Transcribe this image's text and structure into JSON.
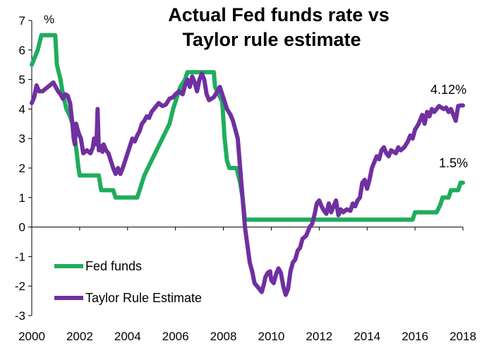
{
  "chart_data": {
    "type": "line",
    "title_lines": [
      "Actual Fed funds rate vs",
      "Taylor rule estimate"
    ],
    "ylabel": "%",
    "xlabel": "",
    "xlim": [
      2000,
      2018
    ],
    "ylim": [
      -3,
      7
    ],
    "x_ticks": [
      2000,
      2002,
      2004,
      2006,
      2008,
      2010,
      2012,
      2014,
      2016,
      2018
    ],
    "y_ticks": [
      -3,
      -2,
      -1,
      0,
      1,
      2,
      3,
      4,
      5,
      6,
      7
    ],
    "grid": false,
    "legend_position": "lower-left",
    "annotations": [
      {
        "text": "4.12%",
        "series": "Taylor Rule Estimate"
      },
      {
        "text": "1.5%",
        "series": "Fed funds"
      }
    ],
    "series": [
      {
        "name": "Fed funds",
        "color": "#1fad5c",
        "points": [
          [
            2000.0,
            5.5
          ],
          [
            2000.15,
            5.8
          ],
          [
            2000.25,
            6.0
          ],
          [
            2000.4,
            6.5
          ],
          [
            2000.6,
            6.5
          ],
          [
            2000.8,
            6.5
          ],
          [
            2000.98,
            6.5
          ],
          [
            2001.05,
            5.5
          ],
          [
            2001.2,
            5.0
          ],
          [
            2001.3,
            4.5
          ],
          [
            2001.45,
            4.0
          ],
          [
            2001.6,
            3.75
          ],
          [
            2001.7,
            3.5
          ],
          [
            2001.8,
            3.0
          ],
          [
            2001.88,
            2.5
          ],
          [
            2001.95,
            2.0
          ],
          [
            2002.0,
            1.75
          ],
          [
            2002.2,
            1.75
          ],
          [
            2002.5,
            1.75
          ],
          [
            2002.8,
            1.75
          ],
          [
            2002.9,
            1.25
          ],
          [
            2003.1,
            1.25
          ],
          [
            2003.4,
            1.25
          ],
          [
            2003.5,
            1.0
          ],
          [
            2003.8,
            1.0
          ],
          [
            2004.0,
            1.0
          ],
          [
            2004.4,
            1.0
          ],
          [
            2004.5,
            1.25
          ],
          [
            2004.6,
            1.5
          ],
          [
            2004.7,
            1.75
          ],
          [
            2004.85,
            2.0
          ],
          [
            2005.0,
            2.25
          ],
          [
            2005.15,
            2.5
          ],
          [
            2005.3,
            2.75
          ],
          [
            2005.45,
            3.0
          ],
          [
            2005.6,
            3.25
          ],
          [
            2005.75,
            3.5
          ],
          [
            2005.9,
            4.0
          ],
          [
            2006.0,
            4.25
          ],
          [
            2006.2,
            4.75
          ],
          [
            2006.4,
            5.0
          ],
          [
            2006.5,
            5.25
          ],
          [
            2006.8,
            5.25
          ],
          [
            2007.0,
            5.25
          ],
          [
            2007.3,
            5.25
          ],
          [
            2007.6,
            5.25
          ],
          [
            2007.65,
            4.75
          ],
          [
            2007.8,
            4.5
          ],
          [
            2007.95,
            4.25
          ],
          [
            2008.05,
            3.0
          ],
          [
            2008.15,
            2.25
          ],
          [
            2008.25,
            2.0
          ],
          [
            2008.55,
            2.0
          ],
          [
            2008.7,
            1.5
          ],
          [
            2008.8,
            1.0
          ],
          [
            2008.9,
            0.25
          ],
          [
            2009.5,
            0.25
          ],
          [
            2010.5,
            0.25
          ],
          [
            2011.5,
            0.25
          ],
          [
            2012.5,
            0.25
          ],
          [
            2013.5,
            0.25
          ],
          [
            2014.5,
            0.25
          ],
          [
            2015.5,
            0.25
          ],
          [
            2015.9,
            0.25
          ],
          [
            2016.0,
            0.5
          ],
          [
            2016.5,
            0.5
          ],
          [
            2016.9,
            0.5
          ],
          [
            2017.05,
            0.75
          ],
          [
            2017.15,
            1.0
          ],
          [
            2017.4,
            1.0
          ],
          [
            2017.5,
            1.25
          ],
          [
            2017.8,
            1.25
          ],
          [
            2017.9,
            1.5
          ],
          [
            2018.0,
            1.5
          ]
        ]
      },
      {
        "name": "Taylor Rule Estimate",
        "color": "#7030a0",
        "points": [
          [
            2000.0,
            4.2
          ],
          [
            2000.1,
            4.4
          ],
          [
            2000.2,
            4.8
          ],
          [
            2000.3,
            4.6
          ],
          [
            2000.45,
            4.6
          ],
          [
            2000.6,
            4.7
          ],
          [
            2000.75,
            4.8
          ],
          [
            2000.9,
            4.9
          ],
          [
            2001.0,
            4.75
          ],
          [
            2001.1,
            4.6
          ],
          [
            2001.2,
            4.5
          ],
          [
            2001.3,
            4.35
          ],
          [
            2001.4,
            4.5
          ],
          [
            2001.5,
            4.45
          ],
          [
            2001.6,
            4.2
          ],
          [
            2001.7,
            3.5
          ],
          [
            2001.75,
            3.0
          ],
          [
            2001.8,
            2.8
          ],
          [
            2001.85,
            3.5
          ],
          [
            2001.95,
            3.2
          ],
          [
            2002.05,
            3.0
          ],
          [
            2002.15,
            2.5
          ],
          [
            2002.3,
            2.6
          ],
          [
            2002.45,
            2.5
          ],
          [
            2002.55,
            2.7
          ],
          [
            2002.6,
            3.0
          ],
          [
            2002.7,
            2.8
          ],
          [
            2002.75,
            4.0
          ],
          [
            2002.8,
            2.6
          ],
          [
            2002.9,
            2.75
          ],
          [
            2002.95,
            2.55
          ],
          [
            2003.0,
            2.8
          ],
          [
            2003.1,
            2.6
          ],
          [
            2003.2,
            2.5
          ],
          [
            2003.3,
            2.25
          ],
          [
            2003.4,
            2.0
          ],
          [
            2003.5,
            1.8
          ],
          [
            2003.6,
            2.0
          ],
          [
            2003.7,
            1.8
          ],
          [
            2003.8,
            2.0
          ],
          [
            2003.9,
            2.25
          ],
          [
            2004.0,
            2.5
          ],
          [
            2004.1,
            2.75
          ],
          [
            2004.2,
            3.0
          ],
          [
            2004.3,
            2.9
          ],
          [
            2004.4,
            3.1
          ],
          [
            2004.5,
            3.25
          ],
          [
            2004.6,
            3.5
          ],
          [
            2004.7,
            3.6
          ],
          [
            2004.8,
            3.75
          ],
          [
            2004.9,
            3.7
          ],
          [
            2005.0,
            3.9
          ],
          [
            2005.1,
            4.0
          ],
          [
            2005.2,
            4.1
          ],
          [
            2005.3,
            4.2
          ],
          [
            2005.45,
            4.1
          ],
          [
            2005.6,
            4.15
          ],
          [
            2005.75,
            4.35
          ],
          [
            2005.9,
            4.4
          ],
          [
            2006.0,
            4.5
          ],
          [
            2006.15,
            4.6
          ],
          [
            2006.3,
            4.5
          ],
          [
            2006.4,
            4.8
          ],
          [
            2006.5,
            5.0
          ],
          [
            2006.6,
            4.75
          ],
          [
            2006.7,
            5.1
          ],
          [
            2006.8,
            4.9
          ],
          [
            2006.9,
            4.6
          ],
          [
            2007.0,
            5.0
          ],
          [
            2007.1,
            5.2
          ],
          [
            2007.2,
            5.0
          ],
          [
            2007.3,
            4.5
          ],
          [
            2007.4,
            4.3
          ],
          [
            2007.5,
            4.35
          ],
          [
            2007.6,
            4.4
          ],
          [
            2007.75,
            4.6
          ],
          [
            2007.85,
            4.75
          ],
          [
            2007.95,
            4.5
          ],
          [
            2008.05,
            4.25
          ],
          [
            2008.15,
            4.0
          ],
          [
            2008.3,
            3.8
          ],
          [
            2008.4,
            3.6
          ],
          [
            2008.5,
            3.3
          ],
          [
            2008.6,
            3.0
          ],
          [
            2008.7,
            2.0
          ],
          [
            2008.8,
            1.0
          ],
          [
            2008.9,
            0.0
          ],
          [
            2009.0,
            -0.6
          ],
          [
            2009.1,
            -1.2
          ],
          [
            2009.2,
            -1.5
          ],
          [
            2009.3,
            -1.9
          ],
          [
            2009.4,
            -2.0
          ],
          [
            2009.5,
            -2.1
          ],
          [
            2009.6,
            -2.2
          ],
          [
            2009.7,
            -1.9
          ],
          [
            2009.75,
            -1.7
          ],
          [
            2009.85,
            -1.55
          ],
          [
            2009.95,
            -1.5
          ],
          [
            2010.0,
            -1.8
          ],
          [
            2010.1,
            -1.9
          ],
          [
            2010.2,
            -1.6
          ],
          [
            2010.3,
            -1.4
          ],
          [
            2010.4,
            -1.55
          ],
          [
            2010.5,
            -2.0
          ],
          [
            2010.6,
            -2.3
          ],
          [
            2010.7,
            -2.1
          ],
          [
            2010.8,
            -1.5
          ],
          [
            2010.9,
            -1.2
          ],
          [
            2011.0,
            -1.1
          ],
          [
            2011.1,
            -0.8
          ],
          [
            2011.2,
            -0.7
          ],
          [
            2011.3,
            -0.4
          ],
          [
            2011.45,
            -0.3
          ],
          [
            2011.6,
            0.0
          ],
          [
            2011.7,
            0.1
          ],
          [
            2011.8,
            0.4
          ],
          [
            2011.9,
            0.8
          ],
          [
            2012.0,
            0.9
          ],
          [
            2012.1,
            0.7
          ],
          [
            2012.2,
            0.55
          ],
          [
            2012.3,
            0.45
          ],
          [
            2012.4,
            0.8
          ],
          [
            2012.5,
            0.5
          ],
          [
            2012.6,
            0.7
          ],
          [
            2012.7,
            0.9
          ],
          [
            2012.8,
            0.4
          ],
          [
            2012.9,
            0.6
          ],
          [
            2013.0,
            0.5
          ],
          [
            2013.15,
            0.6
          ],
          [
            2013.3,
            0.55
          ],
          [
            2013.4,
            0.8
          ],
          [
            2013.5,
            0.7
          ],
          [
            2013.6,
            0.9
          ],
          [
            2013.7,
            1.0
          ],
          [
            2013.8,
            1.5
          ],
          [
            2013.9,
            1.6
          ],
          [
            2014.0,
            1.3
          ],
          [
            2014.1,
            1.6
          ],
          [
            2014.2,
            2.0
          ],
          [
            2014.3,
            2.2
          ],
          [
            2014.4,
            2.4
          ],
          [
            2014.5,
            2.3
          ],
          [
            2014.6,
            2.6
          ],
          [
            2014.7,
            2.7
          ],
          [
            2014.8,
            2.5
          ],
          [
            2014.9,
            2.4
          ],
          [
            2015.0,
            2.6
          ],
          [
            2015.2,
            2.5
          ],
          [
            2015.3,
            2.7
          ],
          [
            2015.4,
            2.6
          ],
          [
            2015.55,
            2.7
          ],
          [
            2015.7,
            2.9
          ],
          [
            2015.8,
            3.1
          ],
          [
            2015.9,
            3.0
          ],
          [
            2016.0,
            3.3
          ],
          [
            2016.15,
            3.5
          ],
          [
            2016.3,
            3.8
          ],
          [
            2016.4,
            3.5
          ],
          [
            2016.5,
            3.9
          ],
          [
            2016.6,
            3.75
          ],
          [
            2016.7,
            4.0
          ],
          [
            2016.8,
            3.9
          ],
          [
            2016.9,
            4.0
          ],
          [
            2017.0,
            4.1
          ],
          [
            2017.1,
            4.05
          ],
          [
            2017.2,
            4.0
          ],
          [
            2017.3,
            4.05
          ],
          [
            2017.4,
            3.9
          ],
          [
            2017.5,
            4.0
          ],
          [
            2017.6,
            3.8
          ],
          [
            2017.7,
            3.6
          ],
          [
            2017.8,
            4.1
          ],
          [
            2017.9,
            4.12
          ],
          [
            2018.0,
            4.12
          ]
        ]
      }
    ]
  }
}
